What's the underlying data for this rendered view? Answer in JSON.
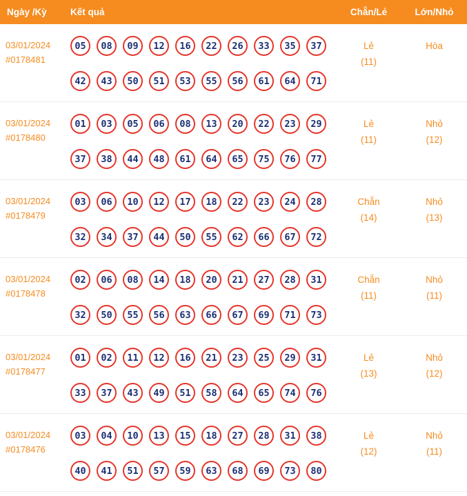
{
  "colors": {
    "accent": "#f68b1f",
    "ball-border": "#e5342a",
    "ball-text": "#1b2f73"
  },
  "header": {
    "col_date": "Ngày /Kỳ",
    "col_result": "Kết quả",
    "col_evenodd": "Chẵn/Lẻ",
    "col_bigsmall": "Lớn/Nhỏ"
  },
  "rows": [
    {
      "date": "03/01/2024",
      "id": "#0178481",
      "numbers_line1": [
        "05",
        "08",
        "09",
        "12",
        "16",
        "22",
        "26",
        "33",
        "35",
        "37"
      ],
      "numbers_line2": [
        "42",
        "43",
        "50",
        "51",
        "53",
        "55",
        "56",
        "61",
        "64",
        "71"
      ],
      "evenodd": "Lẻ",
      "evenodd_count": "(11)",
      "bigsmall": "Hòa",
      "bigsmall_count": ""
    },
    {
      "date": "03/01/2024",
      "id": "#0178480",
      "numbers_line1": [
        "01",
        "03",
        "05",
        "06",
        "08",
        "13",
        "20",
        "22",
        "23",
        "29"
      ],
      "numbers_line2": [
        "37",
        "38",
        "44",
        "48",
        "61",
        "64",
        "65",
        "75",
        "76",
        "77"
      ],
      "evenodd": "Lẻ",
      "evenodd_count": "(11)",
      "bigsmall": "Nhỏ",
      "bigsmall_count": "(12)"
    },
    {
      "date": "03/01/2024",
      "id": "#0178479",
      "numbers_line1": [
        "03",
        "06",
        "10",
        "12",
        "17",
        "18",
        "22",
        "23",
        "24",
        "28"
      ],
      "numbers_line2": [
        "32",
        "34",
        "37",
        "44",
        "50",
        "55",
        "62",
        "66",
        "67",
        "72"
      ],
      "evenodd": "Chẵn",
      "evenodd_count": "(14)",
      "bigsmall": "Nhỏ",
      "bigsmall_count": "(13)"
    },
    {
      "date": "03/01/2024",
      "id": "#0178478",
      "numbers_line1": [
        "02",
        "06",
        "08",
        "14",
        "18",
        "20",
        "21",
        "27",
        "28",
        "31"
      ],
      "numbers_line2": [
        "32",
        "50",
        "55",
        "56",
        "63",
        "66",
        "67",
        "69",
        "71",
        "73"
      ],
      "evenodd": "Chẵn",
      "evenodd_count": "(11)",
      "bigsmall": "Nhỏ",
      "bigsmall_count": "(11)"
    },
    {
      "date": "03/01/2024",
      "id": "#0178477",
      "numbers_line1": [
        "01",
        "02",
        "11",
        "12",
        "16",
        "21",
        "23",
        "25",
        "29",
        "31"
      ],
      "numbers_line2": [
        "33",
        "37",
        "43",
        "49",
        "51",
        "58",
        "64",
        "65",
        "74",
        "76"
      ],
      "evenodd": "Lẻ",
      "evenodd_count": "(13)",
      "bigsmall": "Nhỏ",
      "bigsmall_count": "(12)"
    },
    {
      "date": "03/01/2024",
      "id": "#0178476",
      "numbers_line1": [
        "03",
        "04",
        "10",
        "13",
        "15",
        "18",
        "27",
        "28",
        "31",
        "38"
      ],
      "numbers_line2": [
        "40",
        "41",
        "51",
        "57",
        "59",
        "63",
        "68",
        "69",
        "73",
        "80"
      ],
      "evenodd": "Lẻ",
      "evenodd_count": "(12)",
      "bigsmall": "Nhỏ",
      "bigsmall_count": "(11)"
    }
  ]
}
